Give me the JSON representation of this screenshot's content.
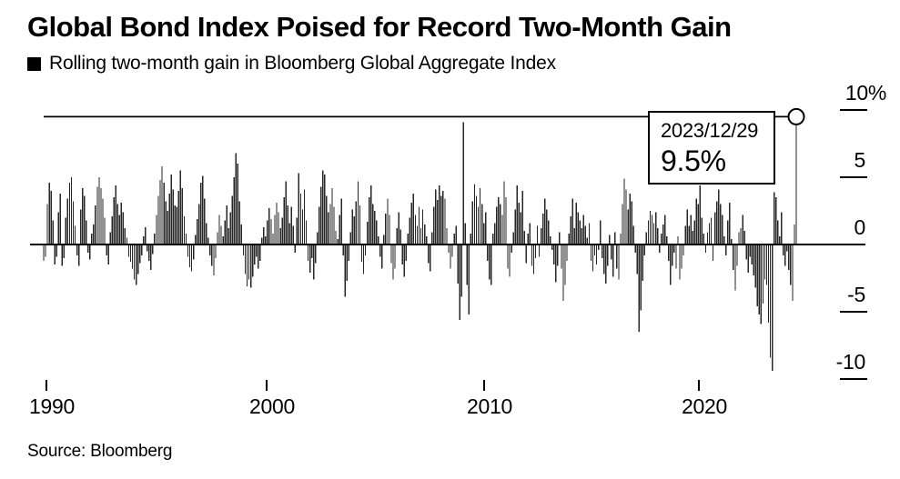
{
  "header": {
    "title": "Global Bond Index Poised for Record Two-Month Gain",
    "legend_label": "Rolling two-month gain in Bloomberg Global Aggregate Index",
    "legend_marker_color": "#000000"
  },
  "annotation": {
    "date": "2023/12/29",
    "value_label": "9.5%"
  },
  "source": "Source: Bloomberg",
  "chart_data": {
    "type": "bar",
    "title": "Global Bond Index Poised for Record Two-Month Gain",
    "series_name": "Rolling two-month gain in Bloomberg Global Aggregate Index",
    "unit": "%",
    "frequency": "monthly",
    "start": "1990-01",
    "end": "2023-12",
    "ylim": [
      -10.5,
      10
    ],
    "grid": false,
    "legend_position": "top-left",
    "bar_color": "#262626",
    "axis_color": "#000000",
    "reference_line_value": 9.5,
    "endpoint": {
      "date": "2023/12/29",
      "value": 9.5,
      "marker": "open-circle"
    },
    "yticks": [
      {
        "label": "10%",
        "value": 10
      },
      {
        "label": "5",
        "value": 5
      },
      {
        "label": "0",
        "value": 0
      },
      {
        "label": "-5",
        "value": -5
      },
      {
        "label": "-10",
        "value": -10
      }
    ],
    "xticks": [
      {
        "label": "1990",
        "year": 1990
      },
      {
        "label": "2000",
        "year": 2000
      },
      {
        "label": "2010",
        "year": 2010
      },
      {
        "label": "2020",
        "year": 2020
      }
    ],
    "values": [
      -1.2,
      -0.9,
      3.0,
      4.6,
      4.0,
      1.8,
      -1.5,
      -0.9,
      2.4,
      3.8,
      -1.6,
      -1.0,
      2.0,
      3.4,
      4.6,
      5.0,
      3.2,
      1.4,
      -0.8,
      -1.6,
      2.6,
      4.2,
      3.6,
      1.8,
      -0.6,
      -1.1,
      0.8,
      1.5,
      2.9,
      4.3,
      5.0,
      4.2,
      3.4,
      2.0,
      -0.8,
      -1.5,
      0.9,
      2.1,
      3.5,
      4.4,
      3.0,
      2.2,
      3.1,
      2.4,
      1.2,
      0.5,
      -0.9,
      -1.3,
      -1.8,
      -2.6,
      -3.0,
      -2.2,
      -1.4,
      -0.8,
      0.6,
      1.3,
      -0.5,
      -1.2,
      -1.9,
      -0.7,
      0.8,
      2.2,
      3.6,
      4.8,
      5.8,
      4.6,
      3.2,
      2.5,
      3.8,
      5.2,
      4.1,
      2.9,
      2.8,
      4.0,
      5.5,
      4.2,
      2.1,
      0.8,
      -0.9,
      -1.7,
      -2.0,
      -1.1,
      0.7,
      1.9,
      3.0,
      4.6,
      5.1,
      3.4,
      1.6,
      0.5,
      -0.8,
      -1.6,
      -2.3,
      -1.0,
      0.9,
      2.2,
      1.4,
      0.6,
      1.8,
      2.9,
      1.2,
      2.4,
      3.6,
      5.0,
      6.8,
      6.0,
      3.2,
      1.5,
      -0.8,
      -2.2,
      -3.1,
      -2.6,
      -3.2,
      -2.4,
      -1.5,
      -0.9,
      -1.8,
      -1.2,
      0.5,
      1.3,
      0.6,
      1.8,
      2.7,
      1.9,
      0.8,
      2.2,
      3.1,
      2.4,
      1.2,
      2.0,
      3.5,
      4.7,
      2.9,
      1.6,
      2.8,
      1.4,
      -0.6,
      2.0,
      5.3,
      3.8,
      2.6,
      4.1,
      1.8,
      -1.2,
      -2.1,
      -1.0,
      -2.6,
      -1.4,
      0.9,
      2.8,
      4.3,
      5.5,
      5.2,
      3.6,
      2.4,
      3.0,
      4.2,
      2.8,
      1.0,
      0.4,
      2.2,
      3.4,
      -0.8,
      -3.9,
      -2.7,
      -1.2,
      0.9,
      2.6,
      2.1,
      3.2,
      4.7,
      2.9,
      -1.3,
      -2.2,
      -0.8,
      1.7,
      3.5,
      4.4,
      3.0,
      2.5,
      1.8,
      0.6,
      -0.9,
      -1.8,
      0.7,
      2.3,
      3.4,
      2.2,
      -1.4,
      -2.6,
      -1.8,
      1.2,
      2.4,
      1.1,
      -1.5,
      -2.4,
      -1.2,
      0.8,
      2.0,
      3.1,
      3.8,
      2.2,
      1.4,
      2.8,
      1.2,
      2.6,
      1.5,
      0.6,
      -1.4,
      -2.0,
      0.9,
      2.8,
      4.1,
      3.3,
      4.4,
      3.6,
      4.0,
      3.4,
      1.2,
      -0.6,
      -1.8,
      -0.9,
      0.8,
      1.4,
      -2.9,
      -5.6,
      -3.9,
      9.1,
      1.6,
      -3.0,
      -5.2,
      0.8,
      3.2,
      4.5,
      3.6,
      2.8,
      4.2,
      3.0,
      1.6,
      2.4,
      -1.2,
      -2.6,
      -3.0,
      0.8,
      1.6,
      2.8,
      3.5,
      3.0,
      2.2,
      4.7,
      3.5,
      -1.8,
      -2.4,
      -0.6,
      0.9,
      2.6,
      4.4,
      3.1,
      2.4,
      4.0,
      1.0,
      -1.4,
      0.8,
      1.6,
      -1.6,
      -2.2,
      -1.0,
      1.4,
      -0.9,
      1.2,
      2.3,
      3.4,
      2.6,
      1.8,
      0.6,
      -0.4,
      -1.5,
      -2.8,
      -1.6,
      0.9,
      -1.8,
      -4.2,
      -3.0,
      -1.2,
      0.8,
      2.1,
      3.4,
      1.2,
      3.1,
      2.4,
      1.8,
      1.2,
      2.2,
      1.4,
      0.5,
      1.6,
      -1.2,
      -2.0,
      -0.8,
      -1.5,
      -0.4,
      1.8,
      -1.0,
      -2.2,
      -2.9,
      -1.6,
      0.7,
      -1.1,
      -2.4,
      0.9,
      -1.8,
      -2.6,
      0.8,
      3.0,
      4.9,
      4.1,
      2.6,
      3.8,
      3.2,
      1.4,
      -0.6,
      -2.2,
      -6.5,
      -4.9,
      -2.7,
      -0.8,
      0.9,
      1.8,
      2.5,
      2.2,
      1.6,
      2.4,
      1.2,
      -0.6,
      0.8,
      1.5,
      2.2,
      0.6,
      -1.2,
      -3.0,
      -1.6,
      -0.6,
      -1.8,
      0.6,
      -2.6,
      -1.8,
      -0.8,
      1.4,
      2.6,
      1.4,
      2.2,
      1.0,
      1.8,
      3.4,
      3.0,
      4.4,
      2.0,
      0.8,
      -0.6,
      0.9,
      1.6,
      2.0,
      -1.2,
      2.4,
      3.2,
      4.1,
      3.0,
      2.2,
      0.6,
      -0.8,
      1.8,
      3.1,
      0.4,
      -1.9,
      -3.4,
      -1.6,
      0.9,
      1.2,
      2.2,
      1.0,
      -1.1,
      -2.1,
      -0.9,
      -1.5,
      -2.3,
      -3.2,
      -4.6,
      -5.2,
      -5.9,
      -4.4,
      -2.6,
      -3.0,
      -5.8,
      -8.4,
      -9.4,
      3.9,
      3.5,
      1.8,
      0.6,
      2.4,
      -0.8,
      -1.6,
      -0.5,
      -1.9,
      -3.0,
      -4.2,
      1.5,
      9.5
    ]
  }
}
